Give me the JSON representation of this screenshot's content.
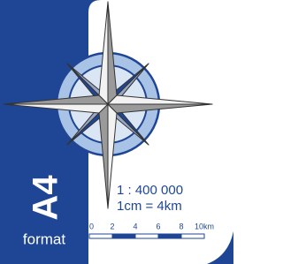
{
  "format": {
    "code": "A4",
    "label": "format"
  },
  "scale": {
    "ratio": "1 : 400 000",
    "equivalence": "1cm = 4km",
    "bar_labels": [
      "0",
      "2",
      "4",
      "6",
      "8",
      "10km"
    ]
  }
}
